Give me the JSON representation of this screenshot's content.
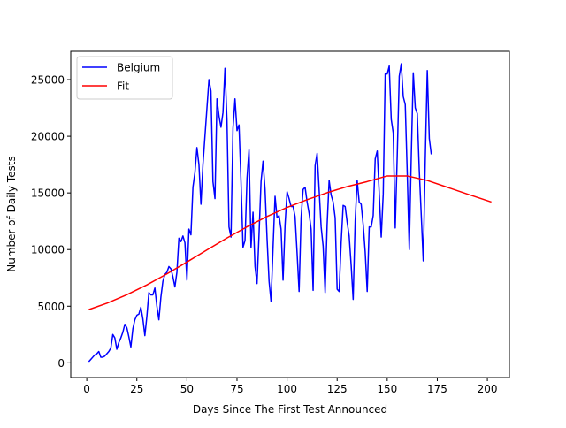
{
  "chart_data": {
    "type": "line",
    "xlabel": "Days Since The First Test Announced",
    "ylabel": "Number of Daily Tests",
    "xlim": [
      -8,
      211
    ],
    "ylim": [
      -1300,
      27500
    ],
    "xticks": [
      0,
      25,
      50,
      75,
      100,
      125,
      150,
      175,
      200
    ],
    "yticks": [
      0,
      5000,
      10000,
      15000,
      20000,
      25000
    ],
    "grid": false,
    "legend_position": "top-left",
    "series": [
      {
        "name": "Belgium",
        "color": "#0000ff",
        "x": [
          1,
          2,
          3,
          4,
          5,
          6,
          7,
          8,
          9,
          10,
          11,
          12,
          13,
          14,
          15,
          16,
          17,
          18,
          19,
          20,
          21,
          22,
          23,
          24,
          25,
          26,
          27,
          28,
          29,
          30,
          31,
          32,
          33,
          34,
          35,
          36,
          37,
          38,
          39,
          40,
          41,
          42,
          43,
          44,
          45,
          46,
          47,
          48,
          49,
          50,
          51,
          52,
          53,
          54,
          55,
          56,
          57,
          58,
          59,
          60,
          61,
          62,
          63,
          64,
          65,
          66,
          67,
          68,
          69,
          70,
          71,
          72,
          73,
          74,
          75,
          76,
          77,
          78,
          79,
          80,
          81,
          82,
          83,
          84,
          85,
          86,
          87,
          88,
          89,
          90,
          91,
          92,
          93,
          94,
          95,
          96,
          97,
          98,
          99,
          100,
          101,
          102,
          103,
          104,
          105,
          106,
          107,
          108,
          109,
          110,
          111,
          112,
          113,
          114,
          115,
          116,
          117,
          118,
          119,
          120,
          121,
          122,
          123,
          124,
          125,
          126,
          127,
          128,
          129,
          130,
          131,
          132,
          133,
          134,
          135,
          136,
          137,
          138,
          139,
          140,
          141,
          142,
          143,
          144,
          145,
          146,
          147,
          148,
          149,
          150,
          151,
          152,
          153,
          154,
          155,
          156,
          157,
          158,
          159,
          160,
          161,
          162,
          163,
          164,
          165,
          166,
          167,
          168,
          169,
          170,
          171,
          172
        ],
        "y": [
          100,
          300,
          500,
          700,
          800,
          1000,
          500,
          500,
          600,
          800,
          1000,
          1300,
          2500,
          2200,
          1200,
          1800,
          2200,
          2700,
          3400,
          3100,
          2300,
          1400,
          3000,
          3800,
          4200,
          4300,
          4900,
          3900,
          2400,
          4100,
          6200,
          6000,
          6000,
          6600,
          5000,
          3800,
          5800,
          7200,
          7800,
          8000,
          8500,
          8300,
          7600,
          6700,
          8000,
          11000,
          10700,
          11200,
          10600,
          7300,
          11800,
          11300,
          15500,
          16800,
          19000,
          17500,
          14000,
          17500,
          20000,
          22500,
          25000,
          24000,
          16000,
          14500,
          23300,
          21800,
          20800,
          22100,
          26000,
          21400,
          12000,
          11100,
          20700,
          23300,
          20500,
          21000,
          16000,
          10200,
          10800,
          16300,
          18800,
          10200,
          13300,
          8500,
          7000,
          11300,
          16000,
          17800,
          15300,
          11000,
          7200,
          5400,
          10200,
          14700,
          12800,
          13000,
          11800,
          7300,
          12200,
          15100,
          14500,
          13800,
          13800,
          12900,
          9700,
          6300,
          12800,
          15300,
          15500,
          14200,
          13200,
          11800,
          6400,
          17400,
          18500,
          15300,
          12000,
          10300,
          6200,
          12200,
          16100,
          14800,
          14200,
          12800,
          6500,
          6300,
          10600,
          13900,
          13800,
          12400,
          11200,
          8600,
          5600,
          12500,
          16100,
          14200,
          14000,
          12200,
          9800,
          6300,
          12000,
          12000,
          13000,
          18000,
          18700,
          15000,
          11100,
          14900,
          25500,
          25500,
          26200,
          21500,
          20300,
          11900,
          18300,
          25300,
          26400,
          23500,
          22800,
          16700,
          10000,
          18200,
          25600,
          22500,
          22000,
          17000,
          13000,
          9000,
          18000,
          25800,
          19800,
          18400
        ]
      },
      {
        "name": "Fit",
        "color": "#ff0000",
        "x": [
          1,
          10,
          20,
          30,
          40,
          50,
          60,
          70,
          80,
          90,
          100,
          110,
          120,
          130,
          140,
          150,
          160,
          170,
          180,
          190,
          202
        ],
        "y": [
          4700,
          5260,
          6010,
          6880,
          7850,
          8900,
          9970,
          11020,
          12010,
          12920,
          13720,
          14400,
          15020,
          15560,
          16000,
          16500,
          16500,
          16100,
          15500,
          14900,
          14200
        ]
      }
    ]
  }
}
